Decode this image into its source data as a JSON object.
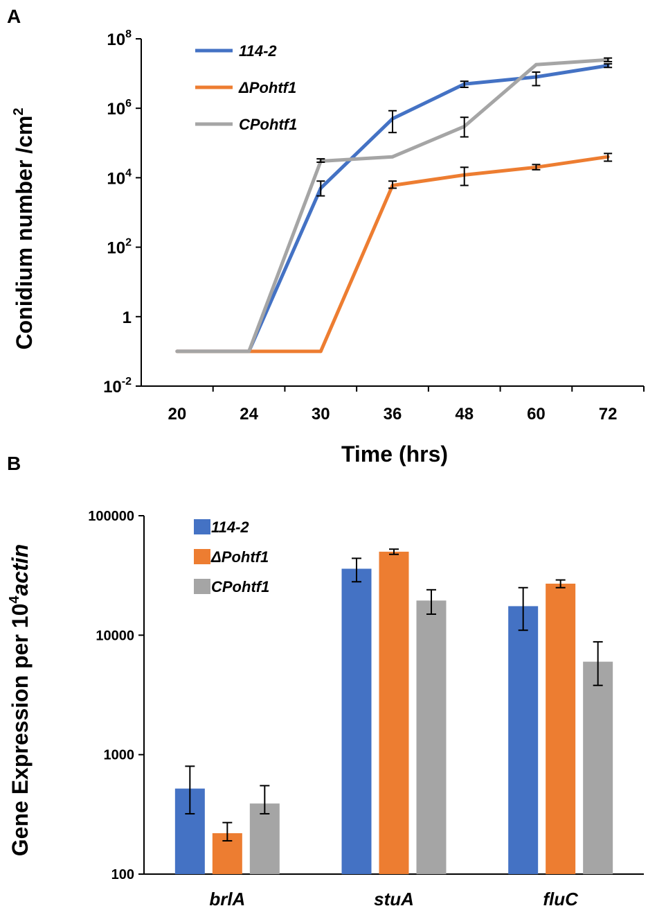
{
  "chart_data": [
    {
      "panel": "A",
      "type": "line",
      "xlabel": "Time (hrs)",
      "ylabel": "Conidium number /cm",
      "ylabel_sup": "2",
      "yscale": "log",
      "ylim": [
        0.01,
        100000000
      ],
      "yticks": [
        {
          "base": "10",
          "exp": "-2",
          "value": 0.01
        },
        {
          "base": "1",
          "exp": "",
          "value": 1
        },
        {
          "base": "10",
          "exp": "2",
          "value": 100
        },
        {
          "base": "10",
          "exp": "4",
          "value": 10000
        },
        {
          "base": "10",
          "exp": "6",
          "value": 1000000
        },
        {
          "base": "10",
          "exp": "8",
          "value": 100000000
        }
      ],
      "categories": [
        "20",
        "24",
        "30",
        "36",
        "48",
        "60",
        "72"
      ],
      "series": [
        {
          "name": "114-2",
          "color": "#4472C4",
          "values": [
            0.1,
            0.1,
            5000,
            500000,
            5000000,
            8000000,
            17000000
          ],
          "err_low": [
            null,
            null,
            3000,
            200000,
            4000000,
            4500000,
            15000000
          ],
          "err_high": [
            null,
            null,
            8000,
            850000,
            6000000,
            11000000,
            19000000
          ]
        },
        {
          "name": "ΔPohtf1",
          "color": "#ED7D31",
          "values": [
            0.1,
            0.1,
            0.1,
            6000,
            12000,
            20000,
            40000
          ],
          "err_low": [
            null,
            null,
            null,
            5000,
            6000,
            17000,
            30000
          ],
          "err_high": [
            null,
            null,
            null,
            8000,
            20000,
            24000,
            50000
          ]
        },
        {
          "name": "CPohtf1",
          "color": "#A5A5A5",
          "values": [
            0.1,
            0.1,
            30000,
            40000,
            300000,
            18000000,
            25000000
          ],
          "err_low": [
            null,
            null,
            28000,
            null,
            150000,
            null,
            22000000
          ],
          "err_high": [
            null,
            null,
            35000,
            null,
            550000,
            null,
            28000000
          ]
        }
      ]
    },
    {
      "panel": "B",
      "type": "bar",
      "xlabel": "",
      "ylabel_main": "Gene Expression per 10",
      "ylabel_sup": "4",
      "ylabel_italic": "actin",
      "yscale": "log",
      "ylim": [
        100,
        100000
      ],
      "yticks": [
        {
          "label": "100",
          "value": 100
        },
        {
          "label": "1000",
          "value": 1000
        },
        {
          "label": "10000",
          "value": 10000
        },
        {
          "label": "100000",
          "value": 100000
        }
      ],
      "categories": [
        "brlA",
        "stuA",
        "fluC"
      ],
      "series": [
        {
          "name": "114-2",
          "color": "#4472C4",
          "values": [
            520,
            36000,
            17500
          ],
          "err_low": [
            320,
            28000,
            11000
          ],
          "err_high": [
            800,
            44000,
            25000
          ]
        },
        {
          "name": "ΔPohtf1",
          "color": "#ED7D31",
          "values": [
            220,
            50000,
            27000
          ],
          "err_low": [
            190,
            47500,
            25000
          ],
          "err_high": [
            270,
            52500,
            29000
          ]
        },
        {
          "name": "CPohtf1",
          "color": "#A5A5A5",
          "values": [
            390,
            19500,
            6000
          ],
          "err_low": [
            320,
            15000,
            3800
          ],
          "err_high": [
            550,
            24000,
            8800
          ]
        }
      ]
    }
  ]
}
